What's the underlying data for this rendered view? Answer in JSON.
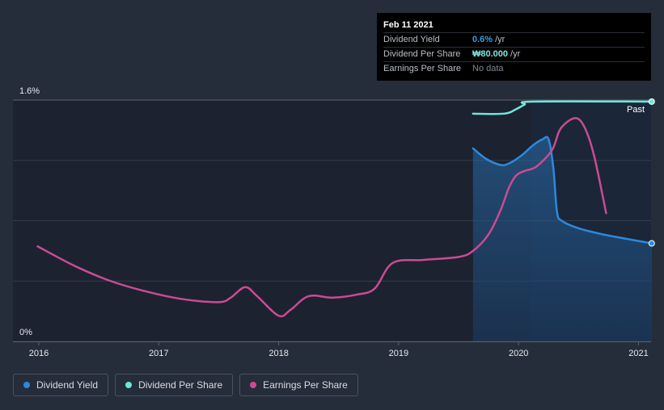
{
  "tooltip": {
    "date": "Feb 11 2021",
    "rows": [
      {
        "label": "Dividend Yield",
        "value": "0.6%",
        "unit": "/yr"
      },
      {
        "label": "Dividend Per Share",
        "value": "₩80.000",
        "unit": "/yr"
      },
      {
        "label": "Earnings Per Share",
        "value": "No data",
        "unit": ""
      }
    ]
  },
  "legend": [
    {
      "label": "Dividend Yield",
      "color": "#2a8ae0"
    },
    {
      "label": "Dividend Per Share",
      "color": "#6ee6d9"
    },
    {
      "label": "Earnings Per Share",
      "color": "#cc4a94"
    }
  ],
  "colors": {
    "background": "#262d3a",
    "past_region": "#1c2230",
    "yield": "#2a8ae0",
    "dps": "#6ee6d9",
    "eps": "#cc4a94"
  },
  "chart_data": {
    "type": "line",
    "title": "",
    "xlabel": "",
    "ylabel": "",
    "x_ticks": [
      "2016",
      "2017",
      "2018",
      "2019",
      "2020",
      "2021"
    ],
    "y_tick_labels": [
      "1.6%",
      "0%"
    ],
    "ylim": [
      0,
      1.6
    ],
    "xlim": [
      2015.78,
      2021.11
    ],
    "past_label": "Past",
    "grid": true,
    "series": [
      {
        "name": "Dividend Yield",
        "unit": "%",
        "points": [
          [
            2019.62,
            1.28
          ],
          [
            2019.73,
            1.21
          ],
          [
            2019.85,
            1.17
          ],
          [
            2019.92,
            1.18
          ],
          [
            2020.02,
            1.23
          ],
          [
            2020.12,
            1.3
          ],
          [
            2020.2,
            1.34
          ],
          [
            2020.25,
            1.34
          ],
          [
            2020.29,
            1.15
          ],
          [
            2020.32,
            0.86
          ],
          [
            2020.36,
            0.8
          ],
          [
            2020.5,
            0.75
          ],
          [
            2020.7,
            0.71
          ],
          [
            2020.9,
            0.68
          ],
          [
            2021.11,
            0.65
          ]
        ],
        "area": true
      },
      {
        "name": "Dividend Per Share",
        "unit": "₩",
        "points": [
          [
            2019.62,
            1.51
          ],
          [
            2019.88,
            1.51
          ],
          [
            2019.98,
            1.54
          ],
          [
            2020.05,
            1.57
          ],
          [
            2020.12,
            1.59
          ],
          [
            2021.11,
            1.59
          ]
        ]
      },
      {
        "name": "Earnings Per Share",
        "points": [
          [
            2015.99,
            0.63
          ],
          [
            2016.3,
            0.5
          ],
          [
            2016.6,
            0.4
          ],
          [
            2016.9,
            0.33
          ],
          [
            2017.2,
            0.28
          ],
          [
            2017.5,
            0.26
          ],
          [
            2017.6,
            0.29
          ],
          [
            2017.72,
            0.36
          ],
          [
            2017.82,
            0.3
          ],
          [
            2018.0,
            0.17
          ],
          [
            2018.1,
            0.21
          ],
          [
            2018.25,
            0.3
          ],
          [
            2018.45,
            0.29
          ],
          [
            2018.65,
            0.31
          ],
          [
            2018.8,
            0.35
          ],
          [
            2018.95,
            0.52
          ],
          [
            2019.2,
            0.54
          ],
          [
            2019.5,
            0.56
          ],
          [
            2019.62,
            0.6
          ],
          [
            2019.75,
            0.71
          ],
          [
            2019.85,
            0.87
          ],
          [
            2019.92,
            1.02
          ],
          [
            2019.98,
            1.1
          ],
          [
            2020.05,
            1.13
          ],
          [
            2020.15,
            1.16
          ],
          [
            2020.28,
            1.27
          ],
          [
            2020.35,
            1.41
          ],
          [
            2020.47,
            1.48
          ],
          [
            2020.55,
            1.42
          ],
          [
            2020.63,
            1.23
          ],
          [
            2020.73,
            0.85
          ]
        ]
      }
    ]
  }
}
